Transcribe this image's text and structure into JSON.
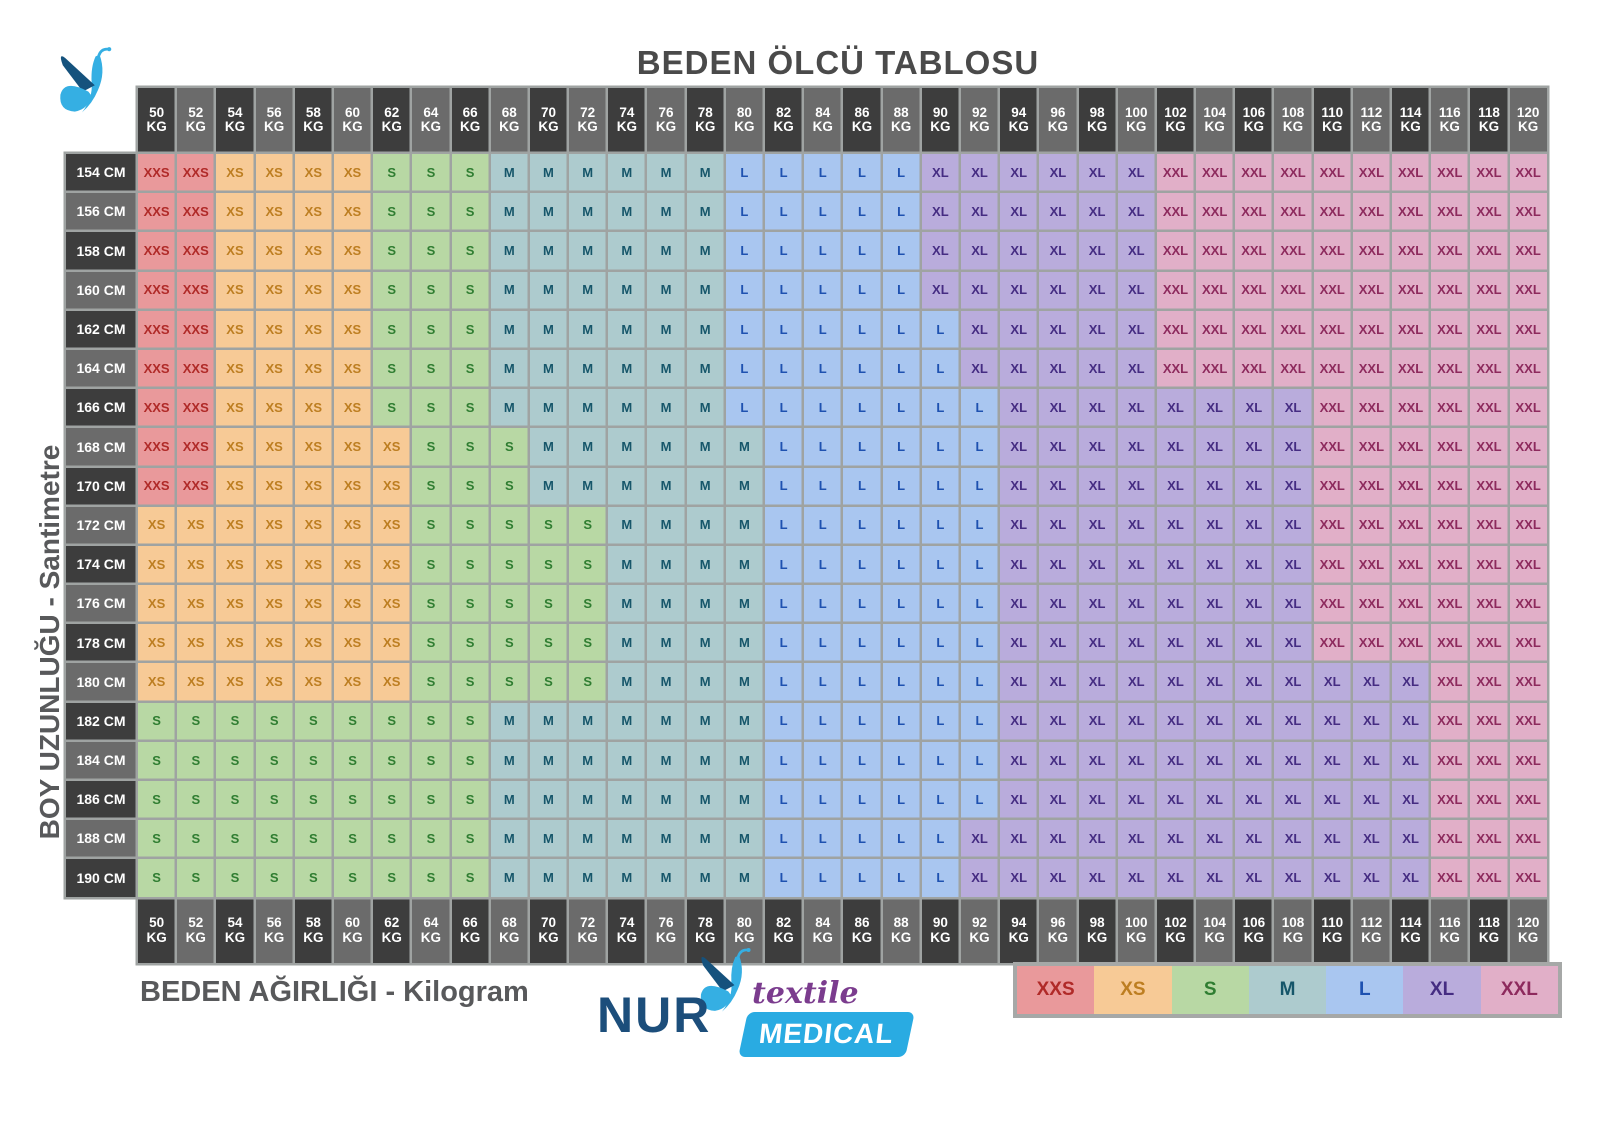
{
  "title": "BEDEN ÖLCÜ TABLOSU",
  "y_axis_label": "BOY UZUNLUĞU - Santimetre",
  "x_axis_label": "BEDEN AĞIRLIĞI - Kilogram",
  "weight_unit": "KG",
  "weights_kg": [
    "50",
    "52",
    "54",
    "56",
    "58",
    "60",
    "62",
    "64",
    "66",
    "68",
    "70",
    "72",
    "74",
    "76",
    "78",
    "80",
    "82",
    "84",
    "86",
    "88",
    "90",
    "92",
    "94",
    "96",
    "98",
    "100",
    "102",
    "104",
    "106",
    "108",
    "110",
    "112",
    "114",
    "116",
    "118",
    "120"
  ],
  "header_colors": {
    "dark": "#3d3d3d",
    "light": "#6b6b6b",
    "text": "#ffffff"
  },
  "grid_line_color": "#9fa3a2",
  "size_colors": {
    "XXS": {
      "bg": "#e9999b",
      "text": "#b02a28"
    },
    "XS": {
      "bg": "#f7ca96",
      "text": "#bd7e21"
    },
    "S": {
      "bg": "#b8d8a4",
      "text": "#2f7d31"
    },
    "M": {
      "bg": "#adcbce",
      "text": "#16566a"
    },
    "L": {
      "bg": "#a9c6f0",
      "text": "#1e51b0"
    },
    "XL": {
      "bg": "#b9acdc",
      "text": "#452c82"
    },
    "XXL": {
      "bg": "#e1afc8",
      "text": "#8d2a5d"
    }
  },
  "legend": {
    "sizes": [
      "XXS",
      "XS",
      "S",
      "M",
      "L",
      "XL",
      "XXL"
    ]
  },
  "logo": {
    "name": "NUR",
    "textile": "textile",
    "medical": "MEDICAL",
    "navy": "#1c4e7b",
    "blue": "#29abe2",
    "purple": "#7b3c8e",
    "butterfly_dark": "#15527d",
    "butterfly_light": "#35afe3"
  },
  "chart_data": {
    "type": "heatmap",
    "title": "BEDEN ÖLCÜ TABLOSU",
    "x_axis_label": "BEDEN AĞIRLIĞI - Kilogram",
    "y_axis_label": "BOY UZUNLUĞU - Santimetre",
    "x_categories_kg": [
      50,
      52,
      54,
      56,
      58,
      60,
      62,
      64,
      66,
      68,
      70,
      72,
      74,
      76,
      78,
      80,
      82,
      84,
      86,
      88,
      90,
      92,
      94,
      96,
      98,
      100,
      102,
      104,
      106,
      108,
      110,
      112,
      114,
      116,
      118,
      120
    ],
    "legend_position": "bottom-right",
    "rows": [
      {
        "label": "154 CM",
        "runs": [
          [
            "XXS",
            2
          ],
          [
            "XS",
            4
          ],
          [
            "S",
            3
          ],
          [
            "M",
            6
          ],
          [
            "L",
            5
          ],
          [
            "XL",
            6
          ],
          [
            "XXL",
            10
          ]
        ]
      },
      {
        "label": "156 CM",
        "runs": [
          [
            "XXS",
            2
          ],
          [
            "XS",
            4
          ],
          [
            "S",
            3
          ],
          [
            "M",
            6
          ],
          [
            "L",
            5
          ],
          [
            "XL",
            6
          ],
          [
            "XXL",
            10
          ]
        ]
      },
      {
        "label": "158 CM",
        "runs": [
          [
            "XXS",
            2
          ],
          [
            "XS",
            4
          ],
          [
            "S",
            3
          ],
          [
            "M",
            6
          ],
          [
            "L",
            5
          ],
          [
            "XL",
            6
          ],
          [
            "XXL",
            10
          ]
        ]
      },
      {
        "label": "160 CM",
        "runs": [
          [
            "XXS",
            2
          ],
          [
            "XS",
            4
          ],
          [
            "S",
            3
          ],
          [
            "M",
            6
          ],
          [
            "L",
            5
          ],
          [
            "XL",
            6
          ],
          [
            "XXL",
            10
          ]
        ]
      },
      {
        "label": "162 CM",
        "runs": [
          [
            "XXS",
            2
          ],
          [
            "XS",
            4
          ],
          [
            "S",
            3
          ],
          [
            "M",
            6
          ],
          [
            "L",
            6
          ],
          [
            "XL",
            5
          ],
          [
            "XXL",
            10
          ]
        ]
      },
      {
        "label": "164 CM",
        "runs": [
          [
            "XXS",
            2
          ],
          [
            "XS",
            4
          ],
          [
            "S",
            3
          ],
          [
            "M",
            6
          ],
          [
            "L",
            6
          ],
          [
            "XL",
            5
          ],
          [
            "XXL",
            10
          ]
        ]
      },
      {
        "label": "166 CM",
        "runs": [
          [
            "XXS",
            2
          ],
          [
            "XS",
            4
          ],
          [
            "S",
            3
          ],
          [
            "M",
            6
          ],
          [
            "L",
            7
          ],
          [
            "XL",
            8
          ],
          [
            "XXL",
            6
          ]
        ]
      },
      {
        "label": "168 CM",
        "runs": [
          [
            "XXS",
            2
          ],
          [
            "XS",
            5
          ],
          [
            "S",
            3
          ],
          [
            "M",
            6
          ],
          [
            "L",
            6
          ],
          [
            "XL",
            8
          ],
          [
            "XXL",
            6
          ]
        ]
      },
      {
        "label": "170 CM",
        "runs": [
          [
            "XXS",
            2
          ],
          [
            "XS",
            5
          ],
          [
            "S",
            3
          ],
          [
            "M",
            6
          ],
          [
            "L",
            6
          ],
          [
            "XL",
            8
          ],
          [
            "XXL",
            6
          ]
        ]
      },
      {
        "label": "172 CM",
        "runs": [
          [
            "XS",
            7
          ],
          [
            "S",
            5
          ],
          [
            "M",
            4
          ],
          [
            "L",
            6
          ],
          [
            "XL",
            8
          ],
          [
            "XXL",
            6
          ]
        ]
      },
      {
        "label": "174 CM",
        "runs": [
          [
            "XS",
            7
          ],
          [
            "S",
            5
          ],
          [
            "M",
            4
          ],
          [
            "L",
            6
          ],
          [
            "XL",
            8
          ],
          [
            "XXL",
            6
          ]
        ]
      },
      {
        "label": "176 CM",
        "runs": [
          [
            "XS",
            7
          ],
          [
            "S",
            5
          ],
          [
            "M",
            4
          ],
          [
            "L",
            6
          ],
          [
            "XL",
            8
          ],
          [
            "XXL",
            6
          ]
        ]
      },
      {
        "label": "178 CM",
        "runs": [
          [
            "XS",
            7
          ],
          [
            "S",
            5
          ],
          [
            "M",
            4
          ],
          [
            "L",
            6
          ],
          [
            "XL",
            8
          ],
          [
            "XXL",
            6
          ]
        ]
      },
      {
        "label": "180 CM",
        "runs": [
          [
            "XS",
            7
          ],
          [
            "S",
            5
          ],
          [
            "M",
            4
          ],
          [
            "L",
            6
          ],
          [
            "XL",
            11
          ],
          [
            "XXL",
            3
          ]
        ]
      },
      {
        "label": "182 CM",
        "runs": [
          [
            "S",
            9
          ],
          [
            "M",
            7
          ],
          [
            "L",
            6
          ],
          [
            "XL",
            11
          ],
          [
            "XXL",
            3
          ]
        ]
      },
      {
        "label": "184 CM",
        "runs": [
          [
            "S",
            9
          ],
          [
            "M",
            7
          ],
          [
            "L",
            6
          ],
          [
            "XL",
            11
          ],
          [
            "XXL",
            3
          ]
        ]
      },
      {
        "label": "186 CM",
        "runs": [
          [
            "S",
            9
          ],
          [
            "M",
            7
          ],
          [
            "L",
            6
          ],
          [
            "XL",
            11
          ],
          [
            "XXL",
            3
          ]
        ]
      },
      {
        "label": "188 CM",
        "runs": [
          [
            "S",
            9
          ],
          [
            "M",
            7
          ],
          [
            "L",
            5
          ],
          [
            "XL",
            12
          ],
          [
            "XXL",
            3
          ]
        ]
      },
      {
        "label": "190 CM",
        "runs": [
          [
            "S",
            9
          ],
          [
            "M",
            7
          ],
          [
            "L",
            5
          ],
          [
            "XL",
            12
          ],
          [
            "XXL",
            3
          ]
        ]
      }
    ]
  }
}
